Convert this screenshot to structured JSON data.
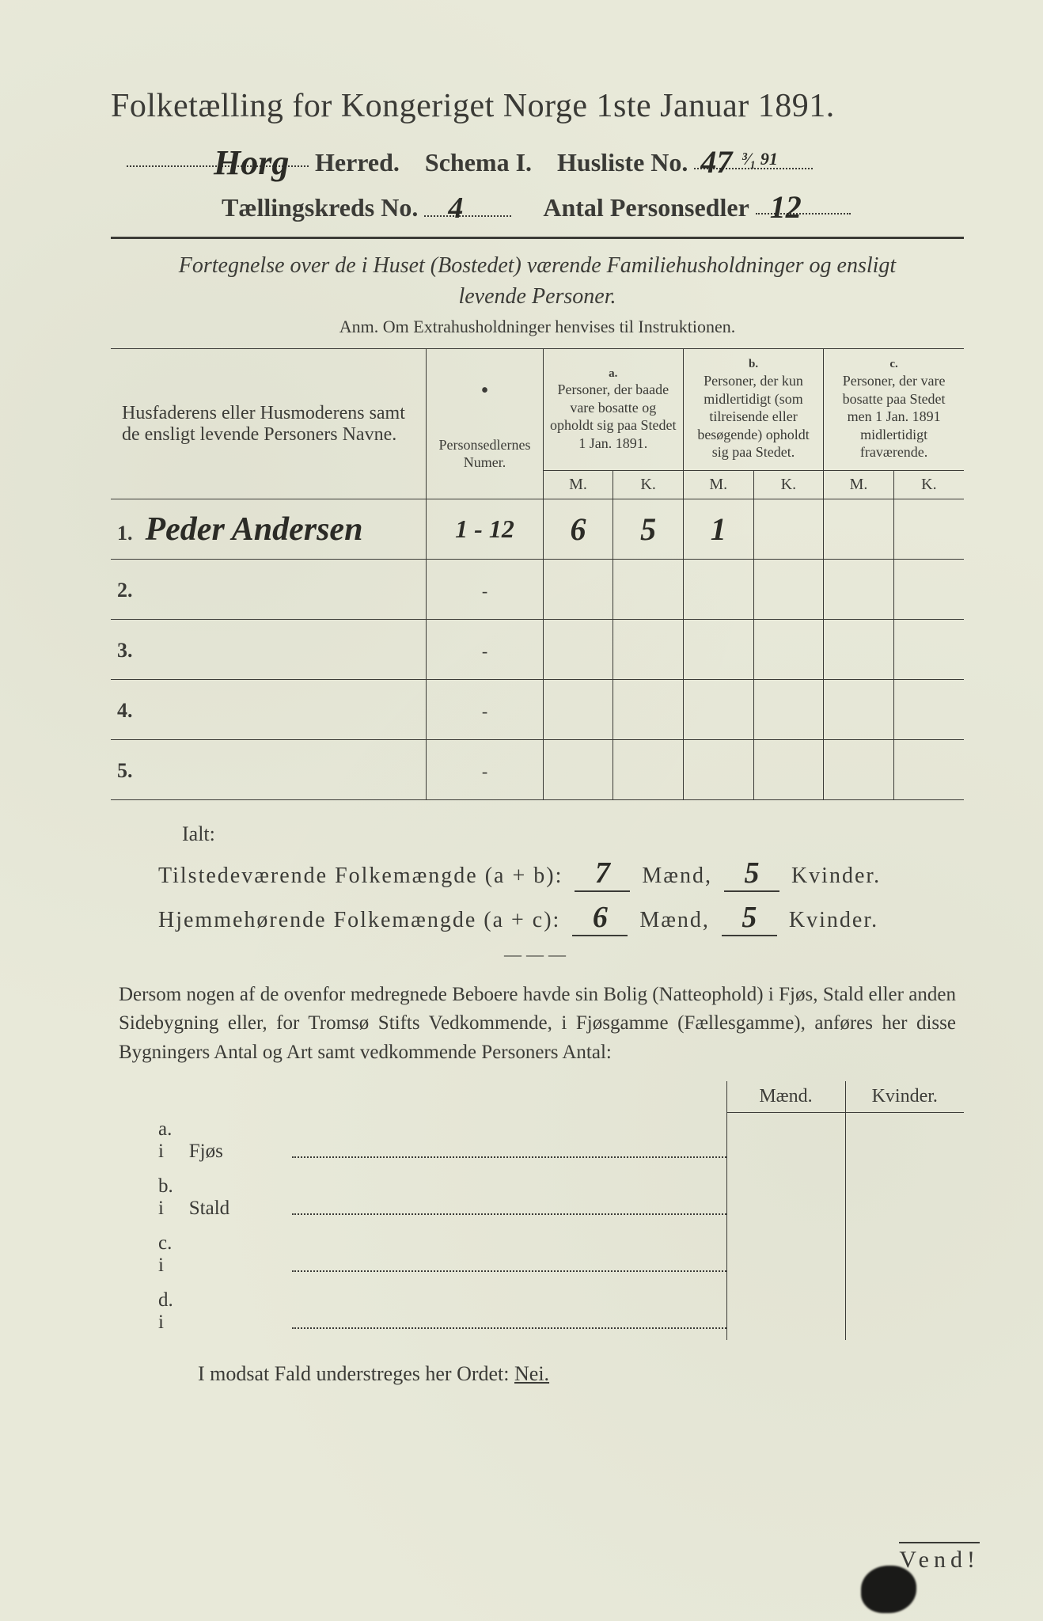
{
  "background_color": "#e8e9d9",
  "ink_color": "#3a3a36",
  "handwriting_color": "#2b2b26",
  "header": {
    "title": "Folketælling for Kongeriget Norge 1ste Januar 1891.",
    "herred_value": "Horg",
    "herred_label": "Herred.",
    "schema_label": "Schema I.",
    "husliste_label": "Husliste No.",
    "husliste_value": "47",
    "husliste_fraction": "³⁄₁ 91",
    "kreds_label": "Tællingskreds No.",
    "kreds_value": "4",
    "personsedler_label": "Antal Personsedler",
    "personsedler_value": "12"
  },
  "fortegnelse": {
    "line": "Fortegnelse over de i Huset (Bostedet) værende Familiehusholdninger og ensligt levende Personer.",
    "anm": "Anm. Om Extrahusholdninger henvises til Instruktionen."
  },
  "table": {
    "col_name": "Husfaderens eller Husmoderens samt de ensligt levende Personers Navne.",
    "col_num": "Personsedlernes Numer.",
    "group_a_lbl": "a.",
    "group_a": "Personer, der baade vare bosatte og opholdt sig paa Stedet 1 Jan. 1891.",
    "group_b_lbl": "b.",
    "group_b": "Personer, der kun midlertidigt (som tilreisende eller besøgende) opholdt sig paa Stedet.",
    "group_c_lbl": "c.",
    "group_c": "Personer, der vare bosatte paa Stedet men 1 Jan. 1891 midlertidigt fraværende.",
    "m": "M.",
    "k": "K.",
    "rows": [
      {
        "n": "1.",
        "name": "Peder Andersen",
        "num": "1 - 12",
        "a_m": "6",
        "a_k": "5",
        "b_m": "1",
        "b_k": "",
        "c_m": "",
        "c_k": ""
      },
      {
        "n": "2.",
        "name": "",
        "num": "-",
        "a_m": "",
        "a_k": "",
        "b_m": "",
        "b_k": "",
        "c_m": "",
        "c_k": ""
      },
      {
        "n": "3.",
        "name": "",
        "num": "-",
        "a_m": "",
        "a_k": "",
        "b_m": "",
        "b_k": "",
        "c_m": "",
        "c_k": ""
      },
      {
        "n": "4.",
        "name": "",
        "num": "-",
        "a_m": "",
        "a_k": "",
        "b_m": "",
        "b_k": "",
        "c_m": "",
        "c_k": ""
      },
      {
        "n": "5.",
        "name": "",
        "num": "-",
        "a_m": "",
        "a_k": "",
        "b_m": "",
        "b_k": "",
        "c_m": "",
        "c_k": ""
      }
    ]
  },
  "totals": {
    "ialt": "Ialt:",
    "line1_label": "Tilstedeværende Folkemængde (a + b):",
    "line1_m": "7",
    "line1_k": "5",
    "line2_label": "Hjemmehørende Folkemængde (a + c):",
    "line2_m": "6",
    "line2_k": "5",
    "maend": "Mænd,",
    "kvinder": "Kvinder."
  },
  "para": "Dersom nogen af de ovenfor medregnede Beboere havde sin Bolig (Natteophold) i Fjøs, Stald eller anden Sidebygning eller, for Tromsø Stifts Vedkommende, i Fjøsgamme (Fællesgamme), anføres her disse Bygningers Antal og Art samt vedkommende Personers Antal:",
  "bygn": {
    "maend": "Mænd.",
    "kvinder": "Kvinder.",
    "rows": [
      {
        "lead": "a.  i",
        "label": "Fjøs"
      },
      {
        "lead": "b.  i",
        "label": "Stald"
      },
      {
        "lead": "c.  i",
        "label": ""
      },
      {
        "lead": "d.  i",
        "label": ""
      }
    ]
  },
  "modsat": "I modsat Fald understreges her Ordet:",
  "nei": "Nei.",
  "vend": "Vend!"
}
